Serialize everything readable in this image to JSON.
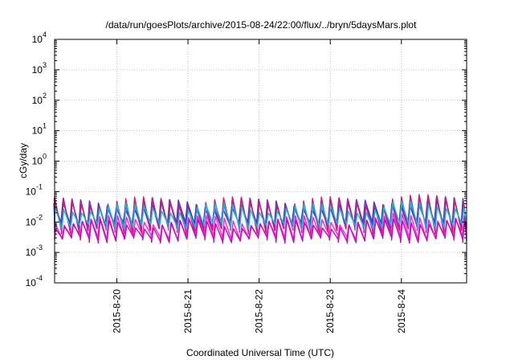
{
  "chart_data": {
    "type": "line",
    "title": "/data/run/goesPlots/archive/2015-08-24/22:00/flux/../bryn/5daysMars.plot",
    "xlabel": "Coordinated Universal Time (UTC)",
    "ylabel": "cGy/day",
    "y_scale": "log",
    "ylim": [
      0.0001,
      10000
    ],
    "y_ticks": [
      {
        "base": "10",
        "exp": "-4"
      },
      {
        "base": "10",
        "exp": "-3"
      },
      {
        "base": "10",
        "exp": "-2"
      },
      {
        "base": "10",
        "exp": "-1"
      },
      {
        "base": "10",
        "exp": "0"
      },
      {
        "base": "10",
        "exp": "1"
      },
      {
        "base": "10",
        "exp": "2"
      },
      {
        "base": "10",
        "exp": "3"
      },
      {
        "base": "10",
        "exp": "4"
      }
    ],
    "xlim": [
      "2015-08-19 03:00",
      "2015-08-24 22:00"
    ],
    "x_ticks": [
      "2015-8-20",
      "2015-8-21",
      "2015-8-22",
      "2015-8-23",
      "2015-8-24"
    ],
    "grid": true,
    "sawtooth_period_hours": 3,
    "series": [
      {
        "color": "#1f3fd6",
        "values_low_high": [
          0.008,
          0.04
        ]
      },
      {
        "color": "#8a2be2",
        "values_low_high": [
          0.006,
          0.045
        ]
      },
      {
        "color": "#d01a6a",
        "values_low_high": [
          0.005,
          0.05
        ]
      },
      {
        "color": "#00c8d8",
        "values_low_high": [
          0.007,
          0.03
        ]
      },
      {
        "color": "#ff1fd0",
        "values_low_high": [
          0.003,
          0.012
        ]
      },
      {
        "color": "#cc00cc",
        "values_low_high": [
          0.0025,
          0.009
        ]
      }
    ]
  }
}
